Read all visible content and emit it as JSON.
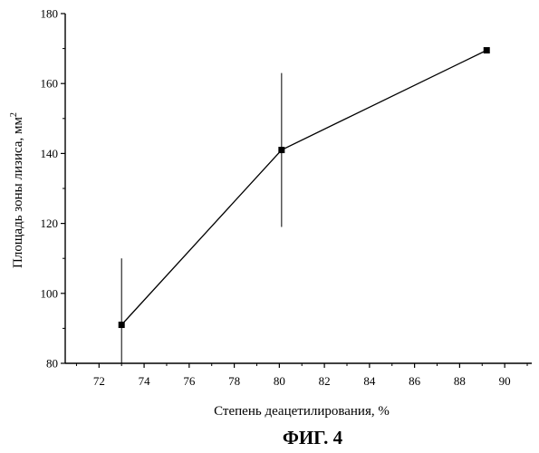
{
  "chart_data": {
    "type": "line",
    "x": [
      73.0,
      80.1,
      89.2
    ],
    "series": [
      {
        "values": [
          91,
          141,
          169.5
        ],
        "error_high": [
          110,
          163,
          null
        ],
        "error_low": [
          80,
          119,
          null
        ]
      }
    ],
    "xlim": [
      70.5,
      91.2
    ],
    "ylim": [
      80,
      180
    ],
    "xticks": [
      "72",
      "74",
      "76",
      "78",
      "80",
      "82",
      "84",
      "86",
      "88",
      "90"
    ],
    "yticks": [
      "80",
      "100",
      "120",
      "140",
      "160",
      "180"
    ],
    "xlabel": "Степень деацетилирования, %",
    "ylabel_main": "Площадь зоны лизиса, мм",
    "ylabel_sup": "2",
    "caption": "ФИГ. 4",
    "grid": false,
    "legend": "none",
    "color": "#000000"
  }
}
